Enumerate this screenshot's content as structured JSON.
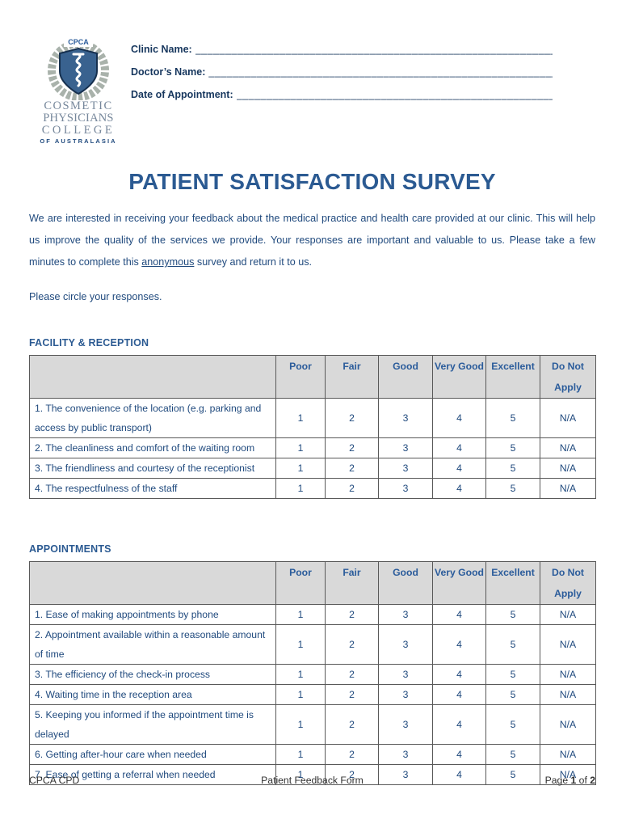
{
  "logo": {
    "acronym": "CPCA",
    "word1": "COSMETIC",
    "word2": "PHYSICIANS",
    "word3": "COLLEGE",
    "word4": "OF AUSTRALASIA",
    "shield_color": "#39628f",
    "wreath_color": "#a9b2ab"
  },
  "fields": [
    {
      "label": "Clinic Name:",
      "value": "",
      "line": "________________________________________________________________________________"
    },
    {
      "label": "Doctor’s Name:",
      "value": "",
      "line": "________________________________________________________________________________"
    },
    {
      "label": "Date of Appointment:",
      "value": "",
      "line": "________________________________________________________________________________"
    }
  ],
  "title": "PATIENT SATISFACTION SURVEY",
  "intro": {
    "before": "We are interested in receiving your feedback about the medical practice and health care provided at our clinic. This will help us improve the quality of the services we provide. Your responses are important and valuable to us. Please take a few minutes to complete this ",
    "underlined": "anonymous",
    "after": " survey and return it to us."
  },
  "instruction": "Please circle your responses.",
  "sections": [
    {
      "heading": "FACILITY & RECEPTION",
      "columns": [
        "Poor",
        "Fair",
        "Good",
        "Very Good",
        "Excellent",
        "Do Not Apply"
      ],
      "rows": [
        {
          "label": "1. The convenience of the location (e.g. parking and access by public transport)",
          "values": [
            "1",
            "2",
            "3",
            "4",
            "5",
            "N/A"
          ]
        },
        {
          "label": "2. The cleanliness and comfort of the waiting room",
          "values": [
            "1",
            "2",
            "3",
            "4",
            "5",
            "N/A"
          ]
        },
        {
          "label": "3. The friendliness and courtesy of the receptionist",
          "values": [
            "1",
            "2",
            "3",
            "4",
            "5",
            "N/A"
          ]
        },
        {
          "label": "4. The respectfulness of the staff",
          "values": [
            "1",
            "2",
            "3",
            "4",
            "5",
            "N/A"
          ]
        }
      ]
    },
    {
      "heading": "APPOINTMENTS",
      "columns": [
        "Poor",
        "Fair",
        "Good",
        "Very Good",
        "Excellent",
        "Do Not Apply"
      ],
      "rows": [
        {
          "label": "1. Ease of making appointments by phone",
          "values": [
            "1",
            "2",
            "3",
            "4",
            "5",
            "N/A"
          ]
        },
        {
          "label": "2. Appointment available within a reasonable amount of time",
          "values": [
            "1",
            "2",
            "3",
            "4",
            "5",
            "N/A"
          ]
        },
        {
          "label": "3. The efficiency of the check-in process",
          "values": [
            "1",
            "2",
            "3",
            "4",
            "5",
            "N/A"
          ]
        },
        {
          "label": "4. Waiting time in the reception area",
          "values": [
            "1",
            "2",
            "3",
            "4",
            "5",
            "N/A"
          ]
        },
        {
          "label": "5. Keeping you informed if the appointment time is delayed",
          "values": [
            "1",
            "2",
            "3",
            "4",
            "5",
            "N/A"
          ]
        },
        {
          "label": "6. Getting after-hour care when needed",
          "values": [
            "1",
            "2",
            "3",
            "4",
            "5",
            "N/A"
          ]
        },
        {
          "label": "7. Ease of getting a referral when needed",
          "values": [
            "1",
            "2",
            "3",
            "4",
            "5",
            "N/A"
          ]
        }
      ]
    }
  ],
  "footer": {
    "left": "CPCA CPD",
    "center": "Patient Feedback Form",
    "page_word": "Page ",
    "page_number": "1",
    "of_word": " of ",
    "page_total": "2"
  },
  "colors": {
    "title_blue": "#2b5a92",
    "body_blue": "#1f497d",
    "label_navy": "#17375e",
    "table_header_bg": "#d9d9d9",
    "table_border": "#595959",
    "footer_text": "#303030"
  }
}
